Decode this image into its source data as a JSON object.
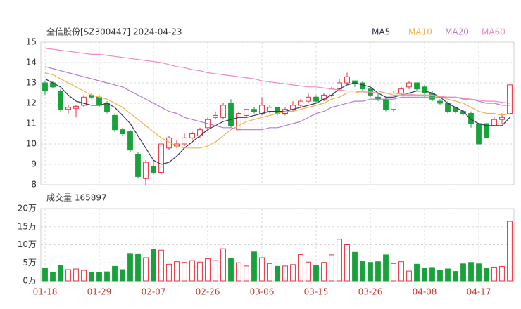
{
  "chart_data": [
    {
      "type": "candlestick",
      "title": "全信股份[SZ300447] 2024-04-23",
      "ylim": [
        8,
        15
      ],
      "yticks": [
        8,
        9,
        10,
        11,
        12,
        13,
        14,
        15
      ],
      "grid": true,
      "up_color": "#e8313f",
      "down_color": "#18a23a",
      "ohlc": [
        [
          13.0,
          13.1,
          12.4,
          12.6
        ],
        [
          13.0,
          13.1,
          12.75,
          12.8
        ],
        [
          12.6,
          12.7,
          11.6,
          11.7
        ],
        [
          11.7,
          11.9,
          11.5,
          11.8
        ],
        [
          11.75,
          11.9,
          11.3,
          11.85
        ],
        [
          11.9,
          12.4,
          11.8,
          12.3
        ],
        [
          12.4,
          12.5,
          12.2,
          12.3
        ],
        [
          12.3,
          12.4,
          11.8,
          11.9
        ],
        [
          12.0,
          12.1,
          11.5,
          11.6
        ],
        [
          11.4,
          11.5,
          10.6,
          10.7
        ],
        [
          10.7,
          10.8,
          10.4,
          10.5
        ],
        [
          10.6,
          10.7,
          9.6,
          9.7
        ],
        [
          9.5,
          9.6,
          8.3,
          8.4
        ],
        [
          8.3,
          9.2,
          8.0,
          9.1
        ],
        [
          8.9,
          9.2,
          8.5,
          8.6
        ],
        [
          8.6,
          10.0,
          8.5,
          10.0
        ],
        [
          9.8,
          10.4,
          9.7,
          10.3
        ],
        [
          9.9,
          10.2,
          9.8,
          10.0
        ],
        [
          10.0,
          10.5,
          9.9,
          10.3
        ],
        [
          10.3,
          10.6,
          10.2,
          10.5
        ],
        [
          10.4,
          10.8,
          10.3,
          10.7
        ],
        [
          10.8,
          11.3,
          10.7,
          11.2
        ],
        [
          11.3,
          11.6,
          11.2,
          11.4
        ],
        [
          11.3,
          12.0,
          11.2,
          11.9
        ],
        [
          12.0,
          12.2,
          10.8,
          10.9
        ],
        [
          10.7,
          11.6,
          10.7,
          11.5
        ],
        [
          11.4,
          11.7,
          11.3,
          11.7
        ],
        [
          11.7,
          11.8,
          11.5,
          11.6
        ],
        [
          11.5,
          12.3,
          11.4,
          11.9
        ],
        [
          11.6,
          11.9,
          11.5,
          11.8
        ],
        [
          11.8,
          11.8,
          11.4,
          11.5
        ],
        [
          11.5,
          11.8,
          11.4,
          11.7
        ],
        [
          11.7,
          12.1,
          11.6,
          11.9
        ],
        [
          11.9,
          12.2,
          11.8,
          12.1
        ],
        [
          12.1,
          12.5,
          12.0,
          12.3
        ],
        [
          12.3,
          12.4,
          12.0,
          12.1
        ],
        [
          12.2,
          12.5,
          12.1,
          12.4
        ],
        [
          12.4,
          12.8,
          12.3,
          12.7
        ],
        [
          12.7,
          13.2,
          12.6,
          13.0
        ],
        [
          13.0,
          13.5,
          12.9,
          13.3
        ],
        [
          13.1,
          13.1,
          12.8,
          13.0
        ],
        [
          13.0,
          13.1,
          12.6,
          12.7
        ],
        [
          12.7,
          12.7,
          12.3,
          12.4
        ],
        [
          12.3,
          12.5,
          12.1,
          12.2
        ],
        [
          12.2,
          12.3,
          11.6,
          11.7
        ],
        [
          11.7,
          12.6,
          11.6,
          12.5
        ],
        [
          12.5,
          12.8,
          12.4,
          12.7
        ],
        [
          12.8,
          13.1,
          12.7,
          13.0
        ],
        [
          13.0,
          13.0,
          12.6,
          12.7
        ],
        [
          12.8,
          12.9,
          12.3,
          12.5
        ],
        [
          12.5,
          12.6,
          12.1,
          12.2
        ],
        [
          12.1,
          12.2,
          11.9,
          12.0
        ],
        [
          12.0,
          12.1,
          11.5,
          11.6
        ],
        [
          11.8,
          11.8,
          11.5,
          11.6
        ],
        [
          11.6,
          11.7,
          11.4,
          11.5
        ],
        [
          11.5,
          11.6,
          10.8,
          11.0
        ],
        [
          11.0,
          11.0,
          10.0,
          10.0
        ],
        [
          11.0,
          11.0,
          10.3,
          10.3
        ],
        [
          10.9,
          11.3,
          10.9,
          11.2
        ],
        [
          11.2,
          11.5,
          11.0,
          11.3
        ],
        [
          11.5,
          12.95,
          11.5,
          12.9
        ]
      ],
      "series": [
        {
          "name": "MA5",
          "color": "#333a56",
          "values": [
            13.2,
            13.0,
            12.8,
            12.4,
            12.1,
            12.0,
            11.9,
            11.9,
            12.0,
            11.8,
            11.4,
            11.0,
            10.4,
            9.8,
            9.2,
            9.0,
            9.1,
            9.4,
            9.8,
            10.1,
            10.4,
            10.7,
            10.9,
            11.1,
            11.2,
            11.3,
            11.3,
            11.4,
            11.5,
            11.6,
            11.6,
            11.6,
            11.7,
            11.8,
            11.9,
            12.0,
            12.2,
            12.4,
            12.7,
            12.9,
            13.0,
            12.9,
            12.8,
            12.5,
            12.3,
            12.3,
            12.4,
            12.5,
            12.6,
            12.6,
            12.5,
            12.3,
            12.0,
            11.8,
            11.6,
            11.2,
            11.0,
            10.9,
            10.9,
            10.9,
            11.3
          ]
        },
        {
          "name": "MA10",
          "color": "#f0b34a",
          "values": [
            13.5,
            13.4,
            13.2,
            13.0,
            12.8,
            12.6,
            12.4,
            12.3,
            12.2,
            12.0,
            11.8,
            11.5,
            11.2,
            10.9,
            10.6,
            10.3,
            10.1,
            9.9,
            9.8,
            9.8,
            9.8,
            9.9,
            10.1,
            10.4,
            10.7,
            10.9,
            11.1,
            11.2,
            11.3,
            11.4,
            11.5,
            11.6,
            11.6,
            11.7,
            11.8,
            11.9,
            12.0,
            12.2,
            12.3,
            12.5,
            12.5,
            12.6,
            12.6,
            12.6,
            12.5,
            12.4,
            12.4,
            12.4,
            12.4,
            12.4,
            12.4,
            12.3,
            12.2,
            12.1,
            12.0,
            11.8,
            11.6,
            11.5,
            11.5,
            11.4,
            11.5
          ]
        },
        {
          "name": "MA20",
          "color": "#b57bd6",
          "values": [
            13.8,
            13.7,
            13.6,
            13.5,
            13.4,
            13.3,
            13.2,
            13.1,
            13.0,
            12.9,
            12.8,
            12.6,
            12.4,
            12.2,
            12.0,
            11.8,
            11.6,
            11.5,
            11.3,
            11.2,
            11.1,
            11.0,
            10.9,
            10.8,
            10.8,
            10.7,
            10.7,
            10.7,
            10.7,
            10.8,
            10.8,
            10.9,
            11.0,
            11.1,
            11.3,
            11.5,
            11.6,
            11.8,
            11.9,
            12.0,
            12.1,
            12.1,
            12.2,
            12.2,
            12.2,
            12.2,
            12.3,
            12.3,
            12.3,
            12.3,
            12.3,
            12.3,
            12.3,
            12.3,
            12.2,
            12.2,
            12.1,
            12.0,
            12.0,
            11.9,
            11.9
          ]
        },
        {
          "name": "MA60",
          "color": "#f08ac4",
          "values": [
            14.7,
            14.65,
            14.6,
            14.55,
            14.5,
            14.45,
            14.4,
            14.4,
            14.35,
            14.3,
            14.25,
            14.2,
            14.15,
            14.1,
            14.05,
            14.0,
            13.9,
            13.8,
            13.75,
            13.65,
            13.6,
            13.5,
            13.45,
            13.4,
            13.35,
            13.3,
            13.25,
            13.2,
            13.1,
            13.05,
            13.0,
            12.95,
            12.9,
            12.85,
            12.8,
            12.8,
            12.75,
            12.7,
            12.65,
            12.6,
            12.6,
            12.55,
            12.55,
            12.5,
            12.5,
            12.5,
            12.45,
            12.45,
            12.4,
            12.4,
            12.4,
            12.35,
            12.3,
            12.3,
            12.25,
            12.2,
            12.15,
            12.1,
            12.1,
            12.05,
            12.0
          ]
        }
      ]
    },
    {
      "type": "bar",
      "title": "成交量 165897",
      "ylim": [
        0,
        20
      ],
      "yticks": [
        {
          "value": 0,
          "label": "0万"
        },
        {
          "value": 5,
          "label": "5万"
        },
        {
          "value": 10,
          "label": "10万"
        },
        {
          "value": 15,
          "label": "15万"
        },
        {
          "value": 20,
          "label": "20万"
        }
      ],
      "grid": true,
      "categories": [
        "01-18",
        null,
        null,
        null,
        null,
        null,
        null,
        "01-29",
        null,
        null,
        null,
        null,
        null,
        null,
        "02-07",
        null,
        null,
        null,
        null,
        null,
        null,
        "02-26",
        null,
        null,
        null,
        null,
        null,
        null,
        "03-06",
        null,
        null,
        null,
        null,
        null,
        null,
        "03-15",
        null,
        null,
        null,
        null,
        null,
        null,
        "03-26",
        null,
        null,
        null,
        null,
        null,
        null,
        "04-08",
        null,
        null,
        null,
        null,
        null,
        null,
        "04-17",
        null,
        null,
        null,
        null
      ],
      "values": [
        3.5,
        2.3,
        4.2,
        3.1,
        3.3,
        2.9,
        2.4,
        2.4,
        2.5,
        4.0,
        3.1,
        7.6,
        7.5,
        6.4,
        8.8,
        8.5,
        4.6,
        5.3,
        5.1,
        5.6,
        5.2,
        6.1,
        5.6,
        8.9,
        6.2,
        5.0,
        4.1,
        8.0,
        6.4,
        4.8,
        4.0,
        4.1,
        4.5,
        7.3,
        5.2,
        4.3,
        5.1,
        7.2,
        11.5,
        10.0,
        7.9,
        5.4,
        5.1,
        5.3,
        7.2,
        4.8,
        5.3,
        2.7,
        4.6,
        3.6,
        3.7,
        3.0,
        3.3,
        2.6,
        4.7,
        5.1,
        4.7,
        3.4,
        3.8,
        4.0,
        16.5
      ]
    }
  ]
}
